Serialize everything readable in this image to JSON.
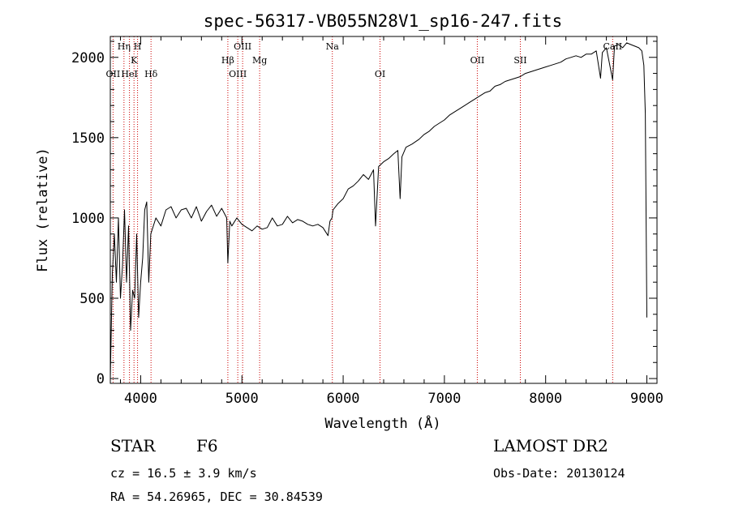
{
  "chart_data": {
    "type": "line",
    "title": "spec-56317-VB055N28V1_sp16-247.fits",
    "xlabel": "Wavelength (Å)",
    "ylabel": "Flux (relative)",
    "xlim": [
      3700,
      9100
    ],
    "ylim": [
      -30,
      2130
    ],
    "xticks": [
      4000,
      5000,
      6000,
      7000,
      8000,
      9000
    ],
    "yticks": [
      0,
      500,
      1000,
      1500,
      2000
    ],
    "series": [
      {
        "x": [
          3700,
          3720,
          3740,
          3760,
          3780,
          3800,
          3820,
          3840,
          3860,
          3880,
          3900,
          3920,
          3940,
          3960,
          3980,
          4000,
          4020,
          4040,
          4060,
          4080,
          4100,
          4150,
          4200,
          4250,
          4300,
          4350,
          4400,
          4450,
          4500,
          4550,
          4600,
          4650,
          4700,
          4750,
          4800,
          4850,
          4861,
          4880,
          4900,
          4950,
          5000,
          5050,
          5100,
          5150,
          5200,
          5250,
          5300,
          5350,
          5400,
          5450,
          5500,
          5550,
          5600,
          5650,
          5700,
          5750,
          5800,
          5850,
          5870,
          5890,
          5900,
          5950,
          6000,
          6050,
          6100,
          6150,
          6200,
          6250,
          6300,
          6320,
          6350,
          6400,
          6450,
          6500,
          6540,
          6563,
          6580,
          6620,
          6680,
          6750,
          6800,
          6850,
          6900,
          6950,
          7000,
          7050,
          7100,
          7150,
          7200,
          7250,
          7300,
          7350,
          7400,
          7450,
          7500,
          7550,
          7600,
          7650,
          7700,
          7750,
          7800,
          7850,
          7900,
          7950,
          8000,
          8050,
          8100,
          8150,
          8200,
          8250,
          8300,
          8350,
          8400,
          8450,
          8500,
          8542,
          8560,
          8600,
          8662,
          8680,
          8720,
          8760,
          8800,
          8840,
          8880,
          8920,
          8950,
          8970,
          8985,
          9000
        ],
        "y": [
          0,
          650,
          900,
          600,
          1000,
          500,
          700,
          1050,
          600,
          950,
          300,
          550,
          500,
          900,
          380,
          600,
          750,
          1050,
          1100,
          600,
          900,
          1000,
          950,
          1050,
          1070,
          1000,
          1050,
          1060,
          1000,
          1070,
          980,
          1040,
          1080,
          1010,
          1060,
          1000,
          720,
          980,
          950,
          1000,
          960,
          940,
          920,
          950,
          930,
          940,
          1000,
          950,
          960,
          1010,
          970,
          990,
          980,
          960,
          950,
          960,
          940,
          890,
          980,
          1000,
          1050,
          1090,
          1120,
          1180,
          1200,
          1230,
          1270,
          1240,
          1300,
          950,
          1320,
          1350,
          1370,
          1400,
          1420,
          1120,
          1380,
          1440,
          1460,
          1490,
          1520,
          1540,
          1570,
          1590,
          1610,
          1640,
          1660,
          1680,
          1700,
          1720,
          1740,
          1760,
          1780,
          1790,
          1820,
          1830,
          1850,
          1860,
          1870,
          1880,
          1900,
          1910,
          1920,
          1930,
          1940,
          1950,
          1960,
          1970,
          1990,
          2000,
          2010,
          2000,
          2020,
          2020,
          2040,
          1870,
          2030,
          2060,
          1860,
          2070,
          2080,
          2060,
          2090,
          2080,
          2070,
          2060,
          2040,
          1950,
          1650,
          380
        ]
      }
    ],
    "lines": [
      {
        "label": "OII",
        "x": 3727,
        "row": 3
      },
      {
        "label": "Hη",
        "x": 3835,
        "row": 1
      },
      {
        "label": "HeI",
        "x": 3889,
        "row": 3
      },
      {
        "label": "K",
        "x": 3934,
        "row": 2
      },
      {
        "label": "H",
        "x": 3969,
        "row": 1
      },
      {
        "label": "Hδ",
        "x": 4102,
        "row": 3
      },
      {
        "label": "Hβ",
        "x": 4861,
        "row": 2
      },
      {
        "label": "OIII",
        "x": 4959,
        "row": 3
      },
      {
        "label": "OIII",
        "x": 5007,
        "row": 1
      },
      {
        "label": "Mg",
        "x": 5175,
        "row": 2
      },
      {
        "label": "Na",
        "x": 5893,
        "row": 1
      },
      {
        "label": "OI",
        "x": 6364,
        "row": 3
      },
      {
        "label": "OII",
        "x": 7325,
        "row": 2
      },
      {
        "label": "SII",
        "x": 7750,
        "row": 2
      },
      {
        "label": "CaII",
        "x": 8662,
        "row": 1
      }
    ]
  },
  "info": {
    "class_label": "STAR",
    "subclass": "F6",
    "survey": "LAMOST DR2",
    "cz": "cz = 16.5 ± 3.9 km/s",
    "obs_date": "Obs-Date: 20130124",
    "coords": "RA =  54.26965, DEC =  30.84539"
  },
  "colors": {
    "spectrum": "#000000",
    "line_marker": "#cc0000",
    "background": "#ffffff"
  }
}
